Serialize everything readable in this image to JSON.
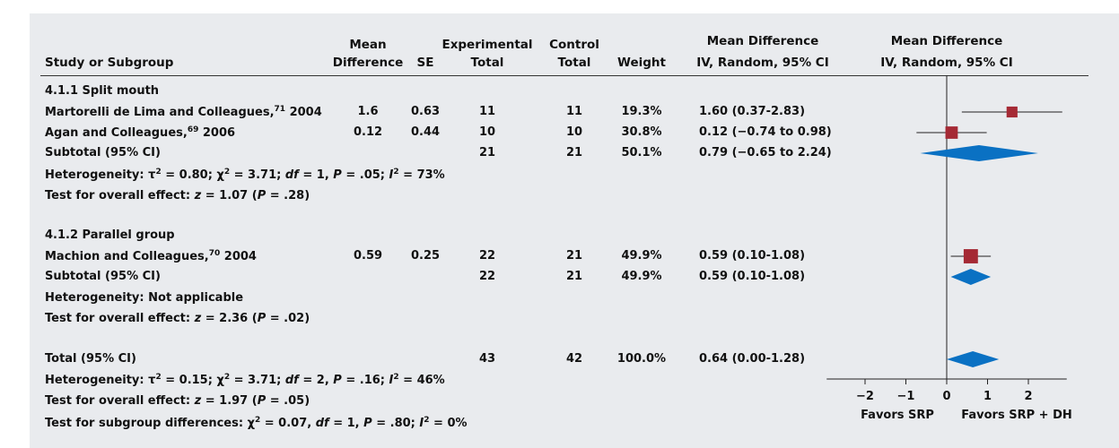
{
  "headers": {
    "study": "Study or Subgroup",
    "md_line1": "Mean",
    "md_line2": "Difference",
    "se": "SE",
    "exp_line1": "Experimental",
    "exp_line2": "Total",
    "ctrl_line1": "Control",
    "ctrl_line2": "Total",
    "weight": "Weight",
    "ci_line1": "Mean Difference",
    "ci_line2": "IV, Random, 95% CI",
    "plot_line1": "Mean Difference",
    "plot_line2": "IV, Random, 95% CI"
  },
  "groups": [
    {
      "title": "4.1.1 Split mouth",
      "studies": [
        {
          "name": "Martorelli de Lima and Colleagues,",
          "ref": "71",
          "year": " 2004",
          "md": "1.6",
          "se": "0.63",
          "exp": "11",
          "ctrl": "11",
          "weight": "19.3%",
          "ci": "1.60 (0.37-2.83)"
        },
        {
          "name": "Agan and Colleagues,",
          "ref": "69",
          "year": " 2006",
          "md": "0.12",
          "se": "0.44",
          "exp": "10",
          "ctrl": "10",
          "weight": "30.8%",
          "ci": "0.12 (−0.74 to 0.98)"
        }
      ],
      "subtotal": {
        "label": "Subtotal (95% CI)",
        "exp": "21",
        "ctrl": "21",
        "weight": "50.1%",
        "ci": "0.79 (−0.65 to 2.24)"
      },
      "heterogeneity": {
        "label": "Heterogeneity: ",
        "tau": "τ",
        "tau_val": " = 0.80; ",
        "chi": "χ",
        "chi_val": " = 3.71; ",
        "df": "df",
        "df_val": " = 1, ",
        "p": "P",
        "p_val": " = .05; ",
        "i": "I",
        "i_val": " = 73%",
        "exp": "2"
      },
      "overall": {
        "label": "Test for overall effect: ",
        "z": "z",
        "z_val": " = 1.07 (",
        "p": "P",
        "p_val": " = .28)"
      }
    },
    {
      "title": "4.1.2 Parallel group",
      "studies": [
        {
          "name": "Machion and Colleagues,",
          "ref": "70",
          "year": " 2004",
          "md": "0.59",
          "se": "0.25",
          "exp": "22",
          "ctrl": "21",
          "weight": "49.9%",
          "ci": "0.59 (0.10-1.08)"
        }
      ],
      "subtotal": {
        "label": "Subtotal (95% CI)",
        "exp": "22",
        "ctrl": "21",
        "weight": "49.9%",
        "ci": "0.59 (0.10-1.08)"
      },
      "heterogeneity_text": "Heterogeneity: Not applicable",
      "overall": {
        "label": "Test for overall effect: ",
        "z": "z",
        "z_val": " = 2.36 (",
        "p": "P",
        "p_val": " = .02)"
      }
    }
  ],
  "total": {
    "label": "Total (95% CI)",
    "exp": "43",
    "ctrl": "42",
    "weight": "100.0%",
    "ci": "0.64 (0.00-1.28)",
    "heterogeneity": {
      "label": "Heterogeneity: ",
      "tau": "τ",
      "tau_val": " = 0.15; ",
      "chi": "χ",
      "chi_val": " = 3.71; ",
      "df": "df",
      "df_val": " = 2, ",
      "p": "P",
      "p_val": " = .16; ",
      "i": "I",
      "i_val": " = 46%",
      "exp": "2"
    },
    "overall": {
      "label": "Test for overall effect: ",
      "z": "z",
      "z_val": " = 1.97 (",
      "p": "P",
      "p_val": " = .05)"
    },
    "subgroup": {
      "label": "Test for subgroup differences: ",
      "chi": "χ",
      "chi_val": " = 0.07, ",
      "df": "df",
      "df_val": " = 1, ",
      "p": "P",
      "p_val": " = .80; ",
      "i": "I",
      "i_val": " = 0%",
      "exp": "2"
    }
  },
  "chart_data": {
    "type": "forest",
    "xlim": [
      -2.5,
      2.5
    ],
    "ticks": [
      -2,
      -1,
      0,
      1,
      2
    ],
    "tick_labels": [
      "−2",
      "−1",
      "0",
      "1",
      "2"
    ],
    "left_label": "Favors SRP",
    "right_label": "Favors SRP + DH",
    "colors": {
      "square": "#a52a35",
      "diamond": "#0a71c3",
      "line": "#222222"
    },
    "studies": [
      {
        "name": "Martorelli de Lima and Colleagues, 2004",
        "md": 1.6,
        "lo": 0.37,
        "hi": 2.83,
        "weight": 19.3
      },
      {
        "name": "Agan and Colleagues, 2006",
        "md": 0.12,
        "lo": -0.74,
        "hi": 0.98,
        "weight": 30.8
      },
      {
        "name": "Machion and Colleagues, 2004",
        "md": 0.59,
        "lo": 0.1,
        "hi": 1.08,
        "weight": 49.9
      }
    ],
    "summaries": [
      {
        "name": "Subtotal 4.1.1",
        "md": 0.79,
        "lo": -0.65,
        "hi": 2.24
      },
      {
        "name": "Subtotal 4.1.2",
        "md": 0.59,
        "lo": 0.1,
        "hi": 1.08
      },
      {
        "name": "Total",
        "md": 0.64,
        "lo": 0.0,
        "hi": 1.28
      }
    ]
  }
}
